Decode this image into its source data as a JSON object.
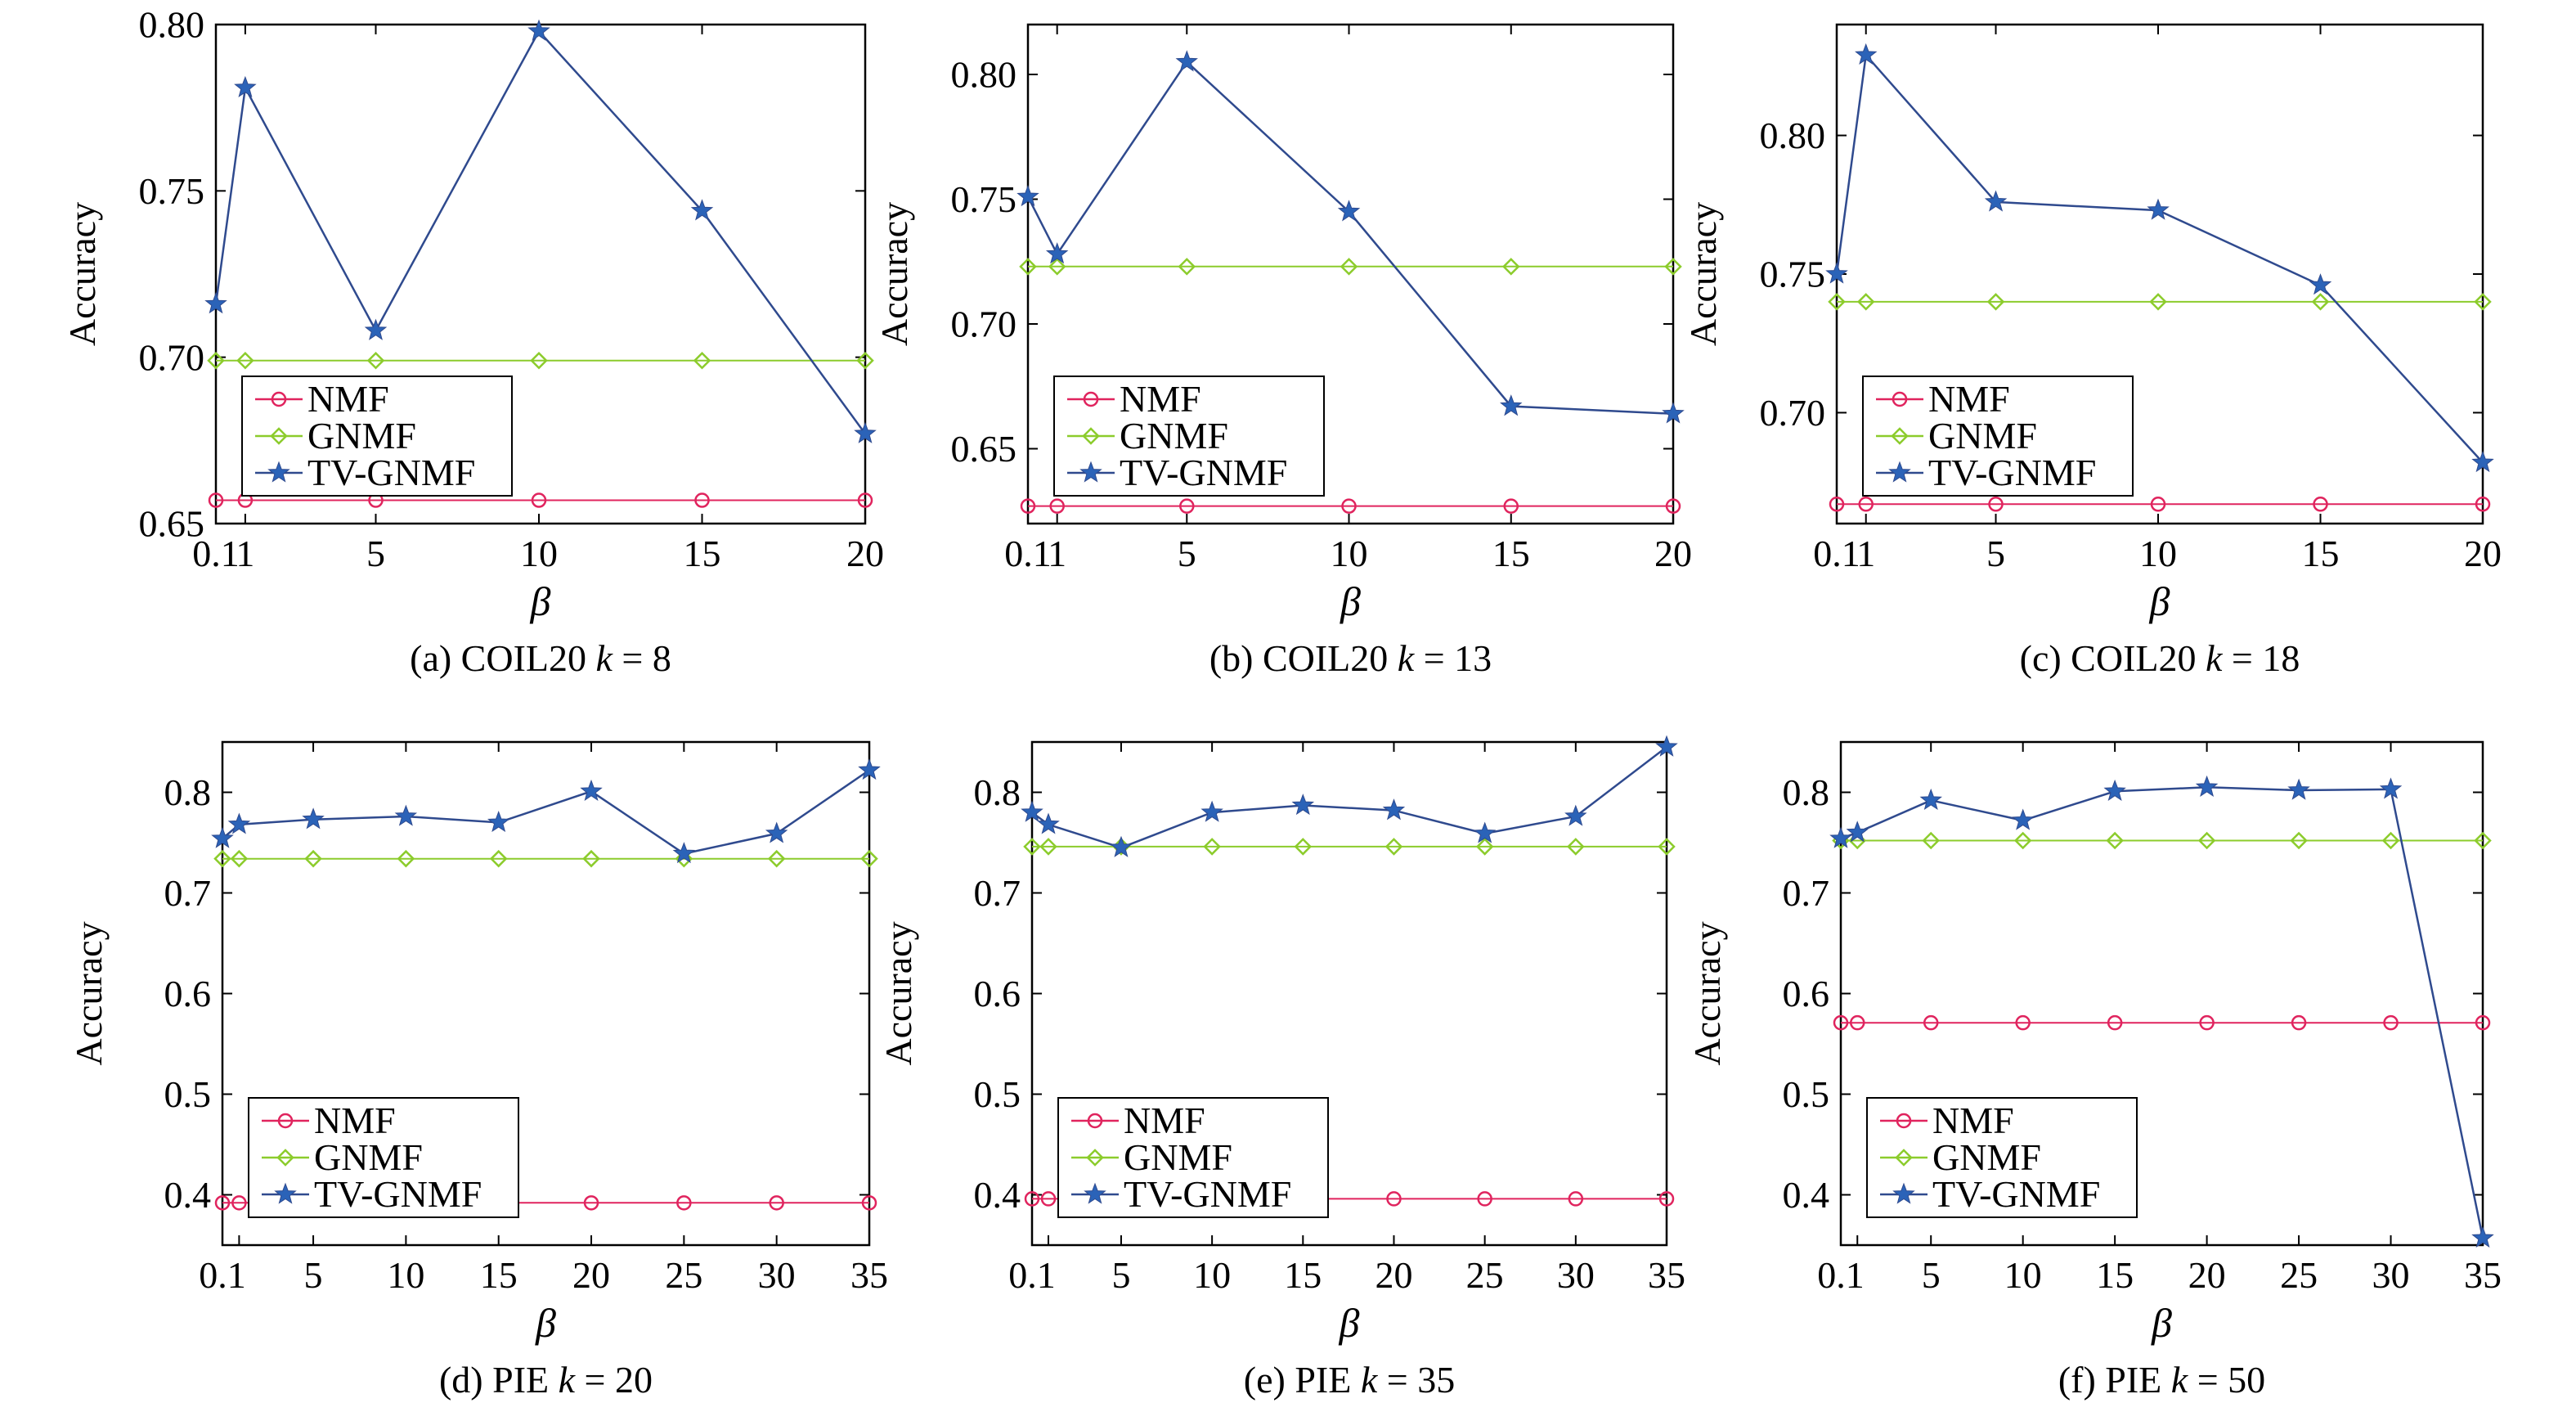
{
  "colors": {
    "NMF": "#e0245e",
    "GNMF": "#8ccc2c",
    "TV-GNMF": "#2f4a8e",
    "TV-GNMF-marker": "#2b63b8",
    "frame": "#000000"
  },
  "chart_data": [
    {
      "type": "line",
      "caption_prefix": "(a) COIL20 ",
      "caption_k": "k",
      "caption_suffix": " = 8",
      "xlabel": "β",
      "ylabel": "Accuracy",
      "xlim": [
        0.1,
        20
      ],
      "ylim": [
        0.65,
        0.8
      ],
      "xticks": [
        0.1,
        1,
        5,
        10,
        15,
        20
      ],
      "xtick_labels": [
        "0.1",
        "1",
        "5",
        "10",
        "15",
        "20"
      ],
      "yticks": [
        0.65,
        0.7,
        0.75,
        0.8
      ],
      "ytick_labels": [
        "0.65",
        "0.70",
        "0.75",
        "0.80"
      ],
      "legend": "lower-left",
      "x": [
        0.1,
        1,
        5,
        10,
        15,
        20
      ],
      "series": [
        {
          "name": "NMF",
          "values": [
            0.657,
            0.657,
            0.657,
            0.657,
            0.657,
            0.657
          ]
        },
        {
          "name": "GNMF",
          "values": [
            0.699,
            0.699,
            0.699,
            0.699,
            0.699,
            0.699
          ]
        },
        {
          "name": "TV-GNMF",
          "values": [
            0.716,
            0.781,
            0.708,
            0.798,
            0.744,
            0.677
          ]
        }
      ]
    },
    {
      "type": "line",
      "caption_prefix": "(b) COIL20 ",
      "caption_k": "k",
      "caption_suffix": " = 13",
      "xlabel": "β",
      "ylabel": "Accuracy",
      "xlim": [
        0.1,
        20
      ],
      "ylim": [
        0.62,
        0.82
      ],
      "xticks": [
        0.1,
        1,
        5,
        10,
        15,
        20
      ],
      "xtick_labels": [
        "0.1",
        "1",
        "5",
        "10",
        "15",
        "20"
      ],
      "yticks": [
        0.65,
        0.7,
        0.75,
        0.8
      ],
      "ytick_labels": [
        "0.65",
        "0.70",
        "0.75",
        "0.80"
      ],
      "legend": "lower-left",
      "x": [
        0.1,
        1,
        5,
        10,
        15,
        20
      ],
      "series": [
        {
          "name": "NMF",
          "values": [
            0.627,
            0.627,
            0.627,
            0.627,
            0.627,
            0.627
          ]
        },
        {
          "name": "GNMF",
          "values": [
            0.723,
            0.723,
            0.723,
            0.723,
            0.723,
            0.723
          ]
        },
        {
          "name": "TV-GNMF",
          "values": [
            0.751,
            0.728,
            0.805,
            0.745,
            0.667,
            0.664
          ]
        }
      ]
    },
    {
      "type": "line",
      "caption_prefix": "(c) COIL20 ",
      "caption_k": "k",
      "caption_suffix": " = 18",
      "xlabel": "β",
      "ylabel": "Accuracy",
      "xlim": [
        0.1,
        20
      ],
      "ylim": [
        0.66,
        0.84
      ],
      "xticks": [
        0.1,
        1,
        5,
        10,
        15,
        20
      ],
      "xtick_labels": [
        "0.1",
        "1",
        "5",
        "10",
        "15",
        "20"
      ],
      "yticks": [
        0.7,
        0.75,
        0.8
      ],
      "ytick_labels": [
        "0.70",
        "0.75",
        "0.80"
      ],
      "legend": "lower-left",
      "x": [
        0.1,
        1,
        5,
        10,
        15,
        20
      ],
      "series": [
        {
          "name": "NMF",
          "values": [
            0.667,
            0.667,
            0.667,
            0.667,
            0.667,
            0.667
          ]
        },
        {
          "name": "GNMF",
          "values": [
            0.74,
            0.74,
            0.74,
            0.74,
            0.74,
            0.74
          ]
        },
        {
          "name": "TV-GNMF",
          "values": [
            0.75,
            0.829,
            0.776,
            0.773,
            0.746,
            0.682
          ]
        }
      ]
    },
    {
      "type": "line",
      "caption_prefix": "(d) PIE ",
      "caption_k": "k",
      "caption_suffix": " = 20",
      "xlabel": "β",
      "ylabel": "Accuracy",
      "xlim": [
        0.1,
        35
      ],
      "ylim": [
        0.35,
        0.85
      ],
      "xticks": [
        0.1,
        5,
        10,
        15,
        20,
        25,
        30,
        35
      ],
      "xtick_labels": [
        "0.1",
        "5",
        "10",
        "15",
        "20",
        "25",
        "30",
        "35"
      ],
      "yticks": [
        0.4,
        0.5,
        0.6,
        0.7,
        0.8
      ],
      "ytick_labels": [
        "0.4",
        "0.5",
        "0.6",
        "0.7",
        "0.8"
      ],
      "legend": "lower-left",
      "x": [
        0.1,
        1,
        5,
        10,
        15,
        20,
        25,
        30,
        35
      ],
      "series": [
        {
          "name": "NMF",
          "values": [
            0.392,
            0.392,
            0.392,
            0.392,
            0.392,
            0.392,
            0.392,
            0.392,
            0.392
          ]
        },
        {
          "name": "GNMF",
          "values": [
            0.734,
            0.734,
            0.734,
            0.734,
            0.734,
            0.734,
            0.734,
            0.734,
            0.734
          ]
        },
        {
          "name": "TV-GNMF",
          "values": [
            0.754,
            0.768,
            0.773,
            0.776,
            0.77,
            0.801,
            0.739,
            0.759,
            0.822
          ]
        }
      ]
    },
    {
      "type": "line",
      "caption_prefix": "(e) PIE ",
      "caption_k": "k",
      "caption_suffix": " = 35",
      "xlabel": "β",
      "ylabel": "Accuracy",
      "xlim": [
        0.1,
        35
      ],
      "ylim": [
        0.35,
        0.85
      ],
      "xticks": [
        0.1,
        5,
        10,
        15,
        20,
        25,
        30,
        35
      ],
      "xtick_labels": [
        "0.1",
        "5",
        "10",
        "15",
        "20",
        "25",
        "30",
        "35"
      ],
      "yticks": [
        0.4,
        0.5,
        0.6,
        0.7,
        0.8
      ],
      "ytick_labels": [
        "0.4",
        "0.5",
        "0.6",
        "0.7",
        "0.8"
      ],
      "legend": "lower-left",
      "x": [
        0.1,
        1,
        5,
        10,
        15,
        20,
        25,
        30,
        35
      ],
      "series": [
        {
          "name": "NMF",
          "values": [
            0.396,
            0.396,
            0.396,
            0.396,
            0.396,
            0.396,
            0.396,
            0.396,
            0.396
          ]
        },
        {
          "name": "GNMF",
          "values": [
            0.746,
            0.746,
            0.746,
            0.746,
            0.746,
            0.746,
            0.746,
            0.746,
            0.746
          ]
        },
        {
          "name": "TV-GNMF",
          "values": [
            0.78,
            0.768,
            0.745,
            0.78,
            0.787,
            0.782,
            0.759,
            0.776,
            0.845
          ]
        }
      ]
    },
    {
      "type": "line",
      "caption_prefix": "(f) PIE ",
      "caption_k": "k",
      "caption_suffix": " = 50",
      "xlabel": "β",
      "ylabel": "Accuracy",
      "xlim": [
        0.1,
        35
      ],
      "ylim": [
        0.35,
        0.85
      ],
      "xticks": [
        0.1,
        5,
        10,
        15,
        20,
        25,
        30,
        35
      ],
      "xtick_labels": [
        "0.1",
        "5",
        "10",
        "15",
        "20",
        "25",
        "30",
        "35"
      ],
      "yticks": [
        0.4,
        0.5,
        0.6,
        0.7,
        0.8
      ],
      "ytick_labels": [
        "0.4",
        "0.5",
        "0.6",
        "0.7",
        "0.8"
      ],
      "legend": "lower-left",
      "x": [
        0.1,
        1,
        5,
        10,
        15,
        20,
        25,
        30,
        35
      ],
      "series": [
        {
          "name": "NMF",
          "values": [
            0.571,
            0.571,
            0.571,
            0.571,
            0.571,
            0.571,
            0.571,
            0.571,
            0.571
          ]
        },
        {
          "name": "GNMF",
          "values": [
            0.752,
            0.752,
            0.752,
            0.752,
            0.752,
            0.752,
            0.752,
            0.752,
            0.752
          ]
        },
        {
          "name": "TV-GNMF",
          "values": [
            0.754,
            0.76,
            0.792,
            0.772,
            0.801,
            0.805,
            0.802,
            0.803,
            0.357
          ]
        }
      ]
    }
  ]
}
